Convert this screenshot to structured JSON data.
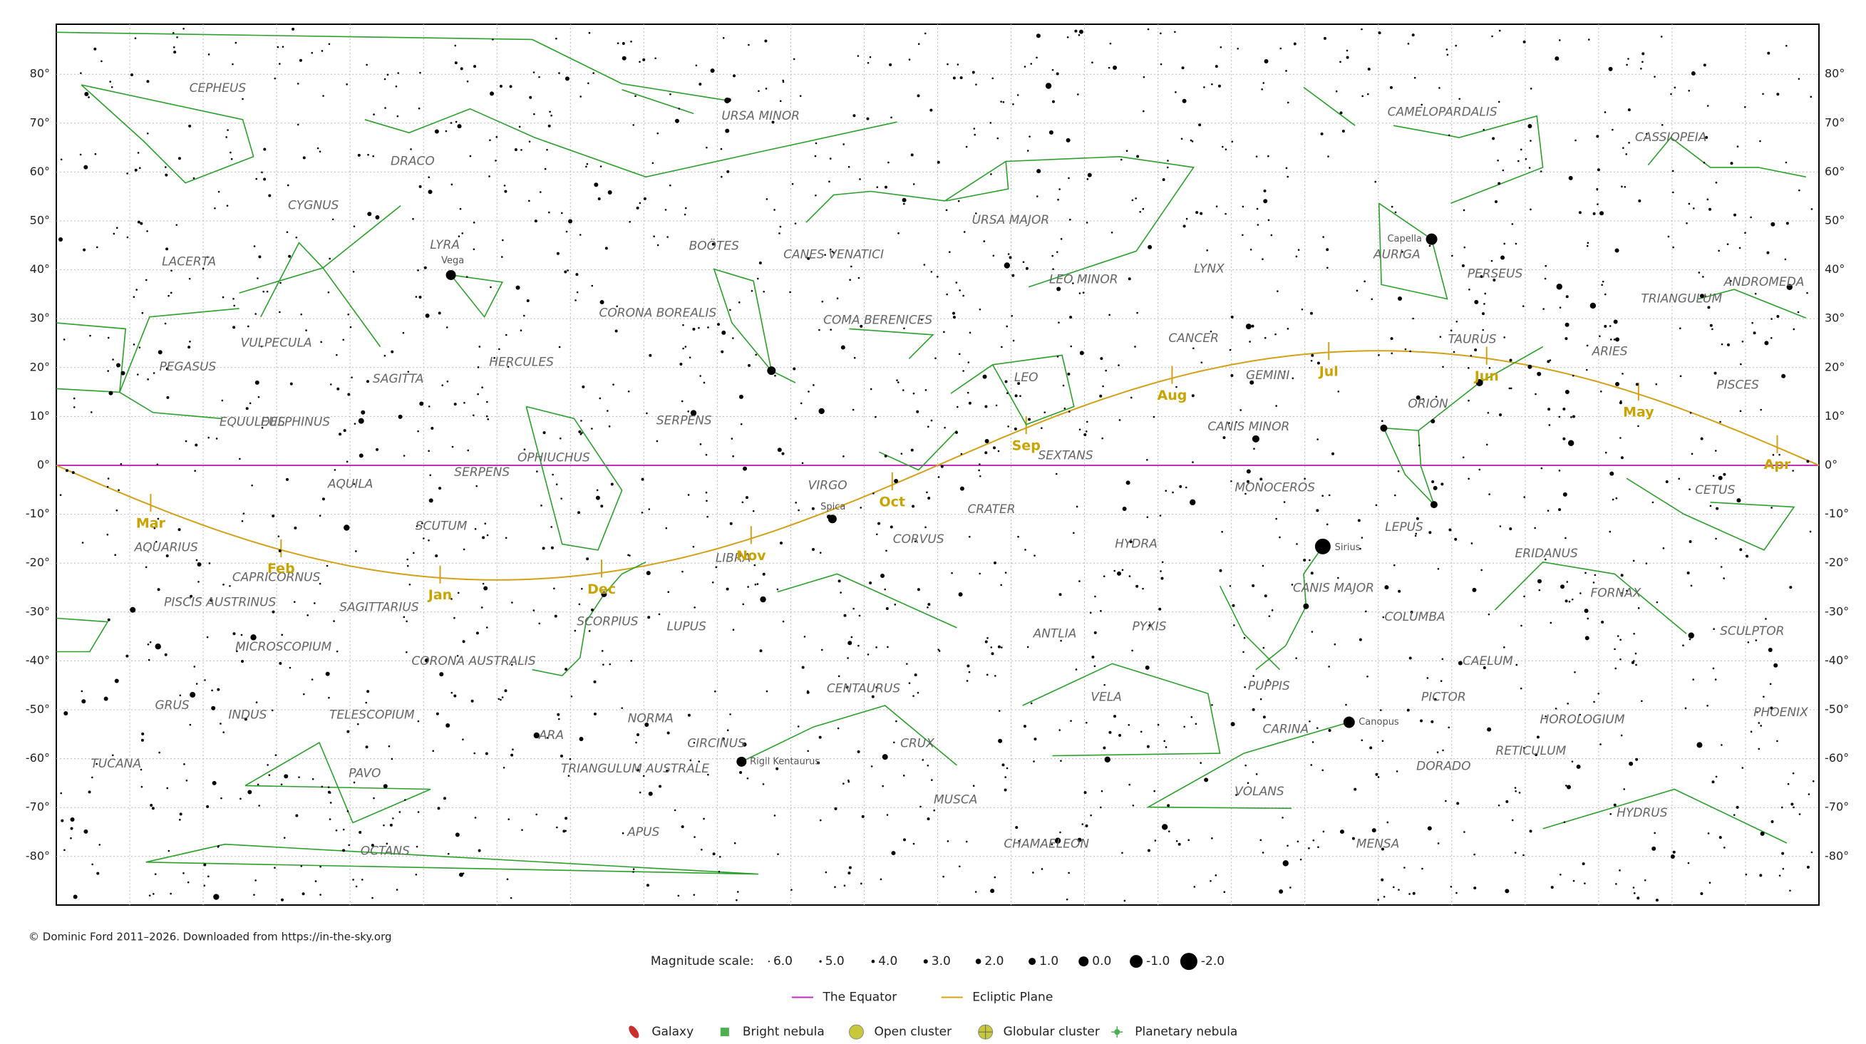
{
  "credit": "© Dominic Ford 2011–2026. Downloaded from https://in-the-sky.org",
  "dec_labels": [
    "80°",
    "70°",
    "60°",
    "50°",
    "40°",
    "30°",
    "20°",
    "10°",
    "0°",
    "-10°",
    "-20°",
    "-30°",
    "-40°",
    "-50°",
    "-60°",
    "-70°",
    "-80°"
  ],
  "constellations": [
    "CEPHEUS",
    "URSA MINOR",
    "DRACO",
    "CYGNUS",
    "LACERTA",
    "LYRA",
    "BOÖTES",
    "CANES VENATICI",
    "URSA MAJOR",
    "CAMELOPARDALIS",
    "CASSIOPEIA",
    "AURIGA",
    "PERSEUS",
    "ANDROMEDA",
    "TRIANGULUM",
    "LEO MINOR",
    "LYNX",
    "CORONA BOREALIS",
    "COMA BERENICES",
    "VULPECULA",
    "PEGASUS",
    "HERCULES",
    "SAGITTA",
    "CANCER",
    "TAURUS",
    "ARIES",
    "PISCES",
    "LEO",
    "GEMINI",
    "ORION",
    "EQUULEUS",
    "DELPHINUS",
    "SERPENS",
    "OPHIUCHUS",
    "SERPENS",
    "AQUILA",
    "SEXTANS",
    "CANIS MINOR",
    "VIRGO",
    "MONOCEROS",
    "CETUS",
    "CRATER",
    "SCUTUM",
    "CORVUS",
    "LEPUS",
    "HYDRA",
    "AQUARIUS",
    "LIBRA",
    "ERIDANUS",
    "CAPRICORNUS",
    "CANIS MAJOR",
    "FORNAX",
    "PISCIS AUSTRINUS",
    "SAGITTARIUS",
    "SCORPIUS",
    "LUPUS",
    "COLUMBA",
    "ANTLIA",
    "PYXIS",
    "SCULPTOR",
    "MICROSCOPIUM",
    "CORONA AUSTRALIS",
    "CAELUM",
    "CENTAURUS",
    "PUPPIS",
    "VELA",
    "PICTOR",
    "GRUS",
    "INDUS",
    "TELESCOPIUM",
    "NORMA",
    "HOROLOGIUM",
    "PHOENIX",
    "CARINA",
    "ARA",
    "CIRCINUS",
    "CRUX",
    "RETICULUM",
    "TUCANA",
    "TRIANGULUM AUSTRALE",
    "DORADO",
    "PAVO",
    "VOLANS",
    "MUSCA",
    "HYDRUS",
    "APUS",
    "MENSA",
    "CHAMAELEON",
    "OCTANS"
  ],
  "stars": [
    "Vega",
    "Capella",
    "Sirius",
    "Spica",
    "Canopus",
    "Rigil Kentaurus"
  ],
  "months": [
    "Mar",
    "Feb",
    "Jan",
    "Dec",
    "Nov",
    "Oct",
    "Sep",
    "Aug",
    "Jul",
    "Jun",
    "May",
    "Apr"
  ],
  "legend": {
    "magnitude_title": "Magnitude scale:",
    "magnitudes": [
      "6.0",
      "5.0",
      "4.0",
      "3.0",
      "2.0",
      "1.0",
      "0.0",
      "-1.0",
      "-2.0"
    ],
    "lines": [
      "The Equator",
      "Ecliptic Plane"
    ],
    "objects": [
      "Galaxy",
      "Bright nebula",
      "Open cluster",
      "Globular cluster",
      "Planetary nebula"
    ]
  }
}
